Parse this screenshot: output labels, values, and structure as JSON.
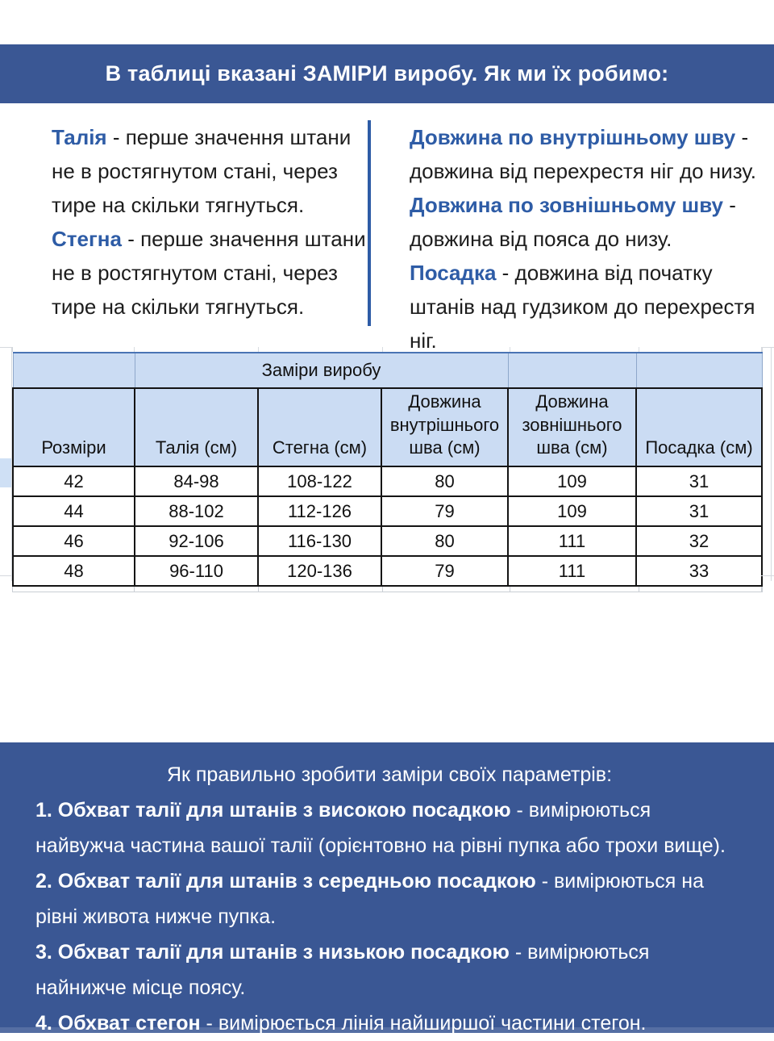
{
  "colors": {
    "banner_blue": "#3a5794",
    "term_blue": "#2e5ca6",
    "cell_blue": "#cbdcf3",
    "border_black": "#141414"
  },
  "header": {
    "title": "В таблиці вказані ЗАМІРИ виробу. Як ми їх робимо:"
  },
  "definitions": {
    "left": [
      {
        "term": "Талія",
        "text": " - перше значення штани не в ростягнутом стані, через тире на скільки тягнуться."
      },
      {
        "term": "Стегна",
        "text": " - перше значення штани не в ростягнутом стані, через тире на скільки тягнуться."
      }
    ],
    "right": [
      {
        "term": "Довжина по внутрішньому шву",
        "text": " - довжина від перехрестя ніг до низу."
      },
      {
        "term": "Довжина по зовнішньому шву",
        "text": " - довжина від пояса до низу."
      },
      {
        "term": "Посадка",
        "text": " - довжина від початку штанів над гудзиком до перехрестя ніг."
      }
    ]
  },
  "table": {
    "merged_header": "Заміри виробу",
    "columns": [
      "Розміри",
      "Талія (см)",
      "Стегна (см)",
      "Довжина внутрішнього шва (см)",
      "Довжина зовнішнього шва (см)",
      "Посадка (см)"
    ],
    "rows": [
      [
        "42",
        "84-98",
        "108-122",
        "80",
        "109",
        "31"
      ],
      [
        "44",
        "88-102",
        "112-126",
        "79",
        "109",
        "31"
      ],
      [
        "46",
        "92-106",
        "116-130",
        "80",
        "111",
        "32"
      ],
      [
        "48",
        "96-110",
        "120-136",
        "79",
        "111",
        "33"
      ]
    ]
  },
  "instructions": {
    "title": "Як правильно зробити заміри своїх параметрів:",
    "items": [
      {
        "label": "1. Обхват талії для штанів з високою посадкою",
        "text": " - вимірюються найвужча частина вашої талії (орієнтовно на рівні пупка або трохи вище)."
      },
      {
        "label": "2. Обхват талії для штанів з середньою посадкою",
        "text": " - вимірюються на рівні живота нижче пупка."
      },
      {
        "label": "3. Обхват талії для штанів з низькою посадкою",
        "text": " - вимірюються найнижче місце поясу."
      },
      {
        "label": "4. Обхват стегон",
        "text": " - вимірюється лінія найширшої частини стегон."
      }
    ]
  }
}
